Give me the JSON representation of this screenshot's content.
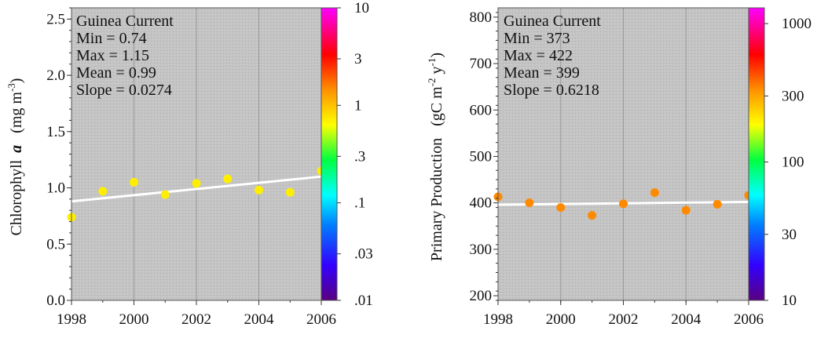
{
  "chart_data": [
    {
      "type": "scatter",
      "ylabel_main": "Chlorophyll",
      "ylabel_italic": "a",
      "ylabel_unit_pre": "(mg m",
      "ylabel_unit_sup": "-3",
      "ylabel_unit_post": ")",
      "info": {
        "region": "Guinea Current",
        "min": "Min = 0.74",
        "max": "Max = 1.15",
        "mean": "Mean = 0.99",
        "slope": "Slope = 0.0274"
      },
      "x": [
        1998,
        1999,
        2000,
        2001,
        2002,
        2003,
        2004,
        2005,
        2006
      ],
      "y": [
        0.74,
        0.97,
        1.05,
        0.94,
        1.04,
        1.08,
        0.98,
        0.96,
        1.15
      ],
      "trend": {
        "x": [
          1998,
          2006
        ],
        "y": [
          0.88,
          1.1
        ]
      },
      "xlim": [
        1998,
        2006
      ],
      "ylim": [
        0,
        2.6
      ],
      "xticks": [
        1998,
        2000,
        2002,
        2004,
        2006
      ],
      "xtick_labels": [
        "1998",
        "2000",
        "2002",
        "2004",
        "2006"
      ],
      "yticks": [
        0,
        0.5,
        1,
        1.5,
        2,
        2.5
      ],
      "ytick_labels": [
        "0.0",
        "0.5",
        "1.0",
        "1.5",
        "2.0",
        "2.5"
      ],
      "point_color": "#ffee00",
      "colorbar": {
        "scale": "log",
        "range": [
          0.01,
          10
        ],
        "ticks": [
          0.01,
          0.03,
          0.1,
          0.3,
          1,
          3,
          10
        ],
        "tick_labels": [
          ".01",
          ".03",
          ".1",
          ".3",
          "1",
          "3",
          "10"
        ]
      },
      "grid": true
    },
    {
      "type": "scatter",
      "ylabel_main": "Primary Production",
      "ylabel_unit_pre": "(gC m",
      "ylabel_unit_sup": "-2",
      "ylabel_unit_mid": " y",
      "ylabel_unit_sup2": "-1",
      "ylabel_unit_post": ")",
      "info": {
        "region": "Guinea Current",
        "min": "Min = 373",
        "max": "Max = 422",
        "mean": "Mean = 399",
        "slope": "Slope = 0.6218"
      },
      "x": [
        1998,
        1999,
        2000,
        2001,
        2002,
        2003,
        2004,
        2005,
        2006
      ],
      "y": [
        413,
        400,
        390,
        373,
        398,
        422,
        384,
        397,
        416
      ],
      "trend": {
        "x": [
          1998,
          2006
        ],
        "y": [
          396,
          402
        ]
      },
      "xlim": [
        1998,
        2006
      ],
      "ylim": [
        190,
        820
      ],
      "xticks": [
        1998,
        2000,
        2002,
        2004,
        2006
      ],
      "xtick_labels": [
        "1998",
        "2000",
        "2002",
        "2004",
        "2006"
      ],
      "yticks": [
        200,
        300,
        400,
        500,
        600,
        700,
        800
      ],
      "ytick_labels": [
        "200",
        "300",
        "400",
        "500",
        "600",
        "700",
        "800"
      ],
      "point_color": "#ff8a00",
      "colorbar": {
        "scale": "log",
        "range": [
          10,
          1300
        ],
        "ticks": [
          10,
          30,
          100,
          300,
          1000
        ],
        "tick_labels": [
          "10",
          "30",
          "100",
          "300",
          "1000"
        ]
      },
      "grid": true
    }
  ]
}
